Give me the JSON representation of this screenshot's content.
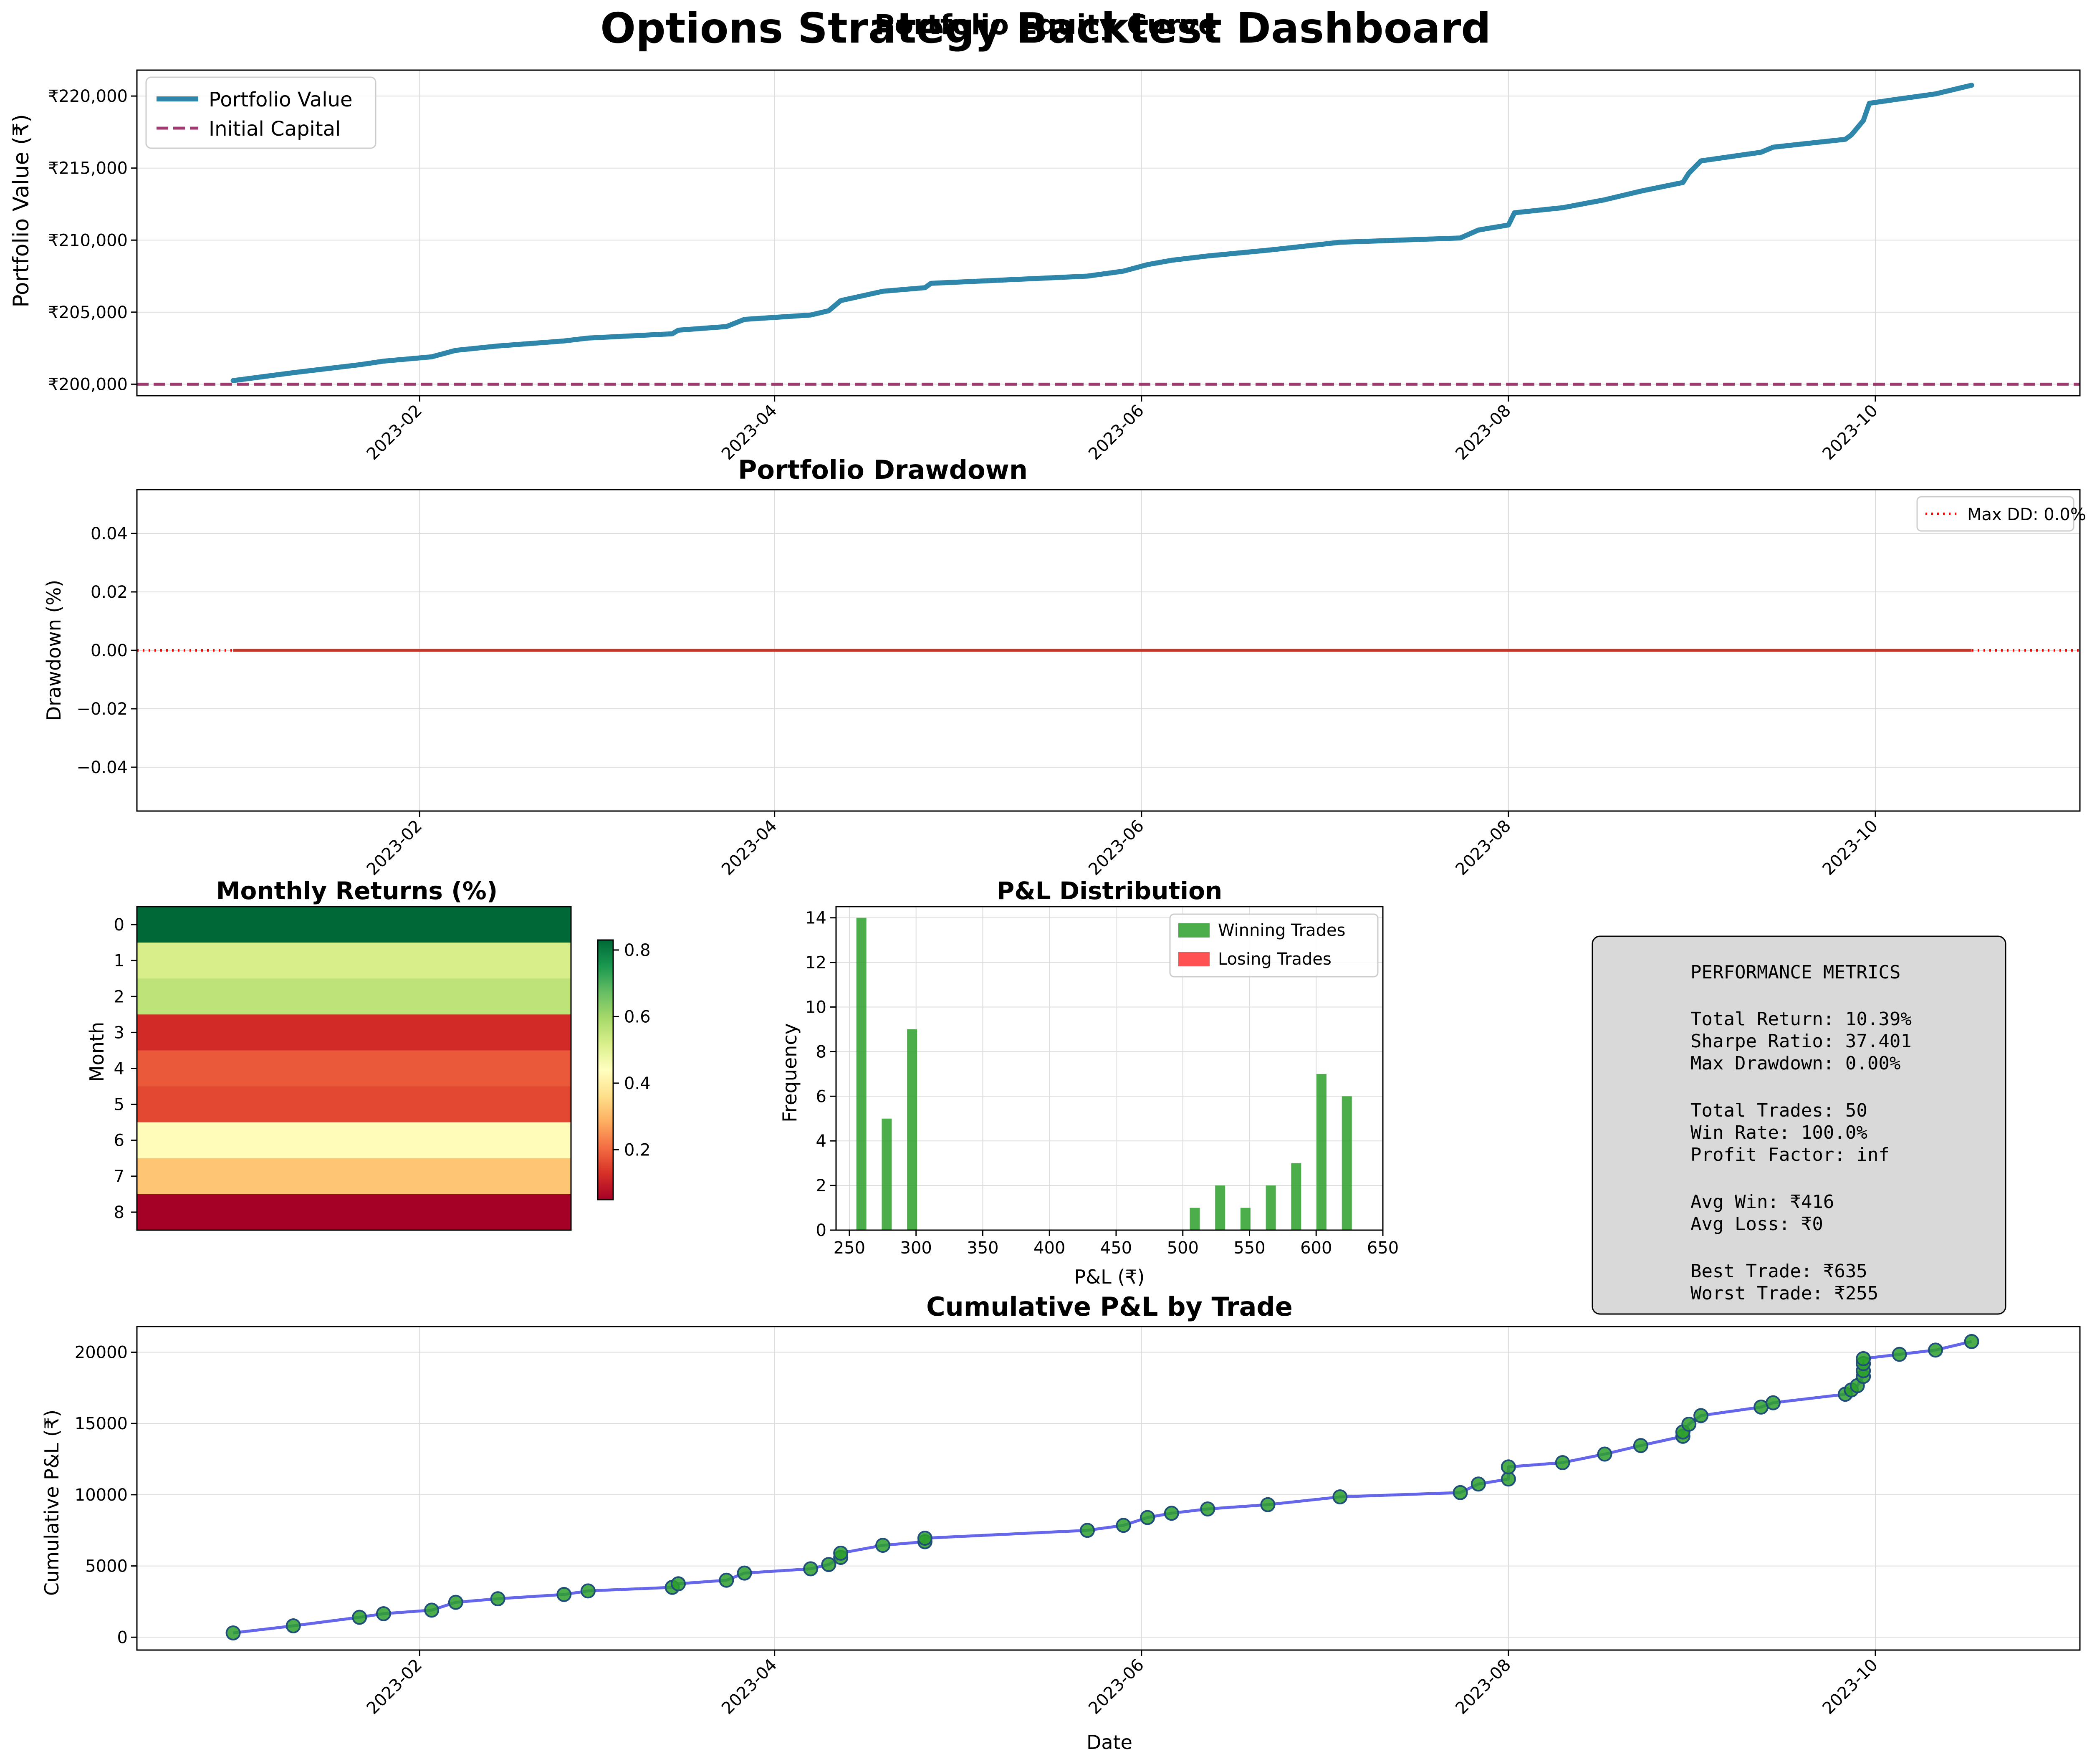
{
  "suptitle": "Options Strategy Backtest Dashboard",
  "colors": {
    "equity": "#2E86AB",
    "initial": "#A23B72",
    "drawdown_line": "#C0392B",
    "maxdd": "#FF0000",
    "win": "#2CA02C",
    "loss": "#FF3333",
    "cum_line": "#4B4BE8",
    "cum_marker": "#2CA02C",
    "metrics_bg": "#D9D9D9"
  },
  "equity": {
    "title": "Portfolio Equity Curve",
    "ylabel": "Portfolio Value (₹)",
    "xticks": [
      {
        "date": "2023-02-01",
        "label": "2023-02"
      },
      {
        "date": "2023-04-01",
        "label": "2023-04"
      },
      {
        "date": "2023-06-01",
        "label": "2023-06"
      },
      {
        "date": "2023-08-01",
        "label": "2023-08"
      },
      {
        "date": "2023-10-01",
        "label": "2023-10"
      }
    ],
    "yticks": [
      {
        "value": 200000,
        "label": "₹200,000"
      },
      {
        "value": 205000,
        "label": "₹205,000"
      },
      {
        "value": 210000,
        "label": "₹210,000"
      },
      {
        "value": 215000,
        "label": "₹215,000"
      },
      {
        "value": 220000,
        "label": "₹220,000"
      }
    ],
    "legend": [
      "Portfolio Value",
      "Initial Capital"
    ]
  },
  "drawdown": {
    "title": "Portfolio Drawdown",
    "ylabel": "Drawdown (%)",
    "yticks": [
      {
        "value": 0.04,
        "label": "0.04"
      },
      {
        "value": 0.02,
        "label": "0.02"
      },
      {
        "value": 0.0,
        "label": "0.00"
      },
      {
        "value": -0.02,
        "label": "−0.02"
      },
      {
        "value": -0.04,
        "label": "−0.04"
      }
    ],
    "legend": "Max DD: 0.0%"
  },
  "monthly": {
    "title": "Monthly Returns (%)",
    "ylabel": "Month",
    "rows": [
      "0",
      "1",
      "2",
      "3",
      "4",
      "5",
      "6",
      "7",
      "8"
    ],
    "colorbar_ticks": [
      "0.2",
      "0.4",
      "0.6",
      "0.8"
    ]
  },
  "pnl": {
    "title": "P&L Distribution",
    "xlabel": "P&L (₹)",
    "ylabel": "Frequency",
    "xticks": [
      "250",
      "300",
      "350",
      "400",
      "450",
      "500",
      "550",
      "600",
      "650"
    ],
    "yticks": [
      "0",
      "2",
      "4",
      "6",
      "8",
      "10",
      "12",
      "14"
    ],
    "legend": [
      "Winning Trades",
      "Losing Trades"
    ]
  },
  "metrics": {
    "header": "PERFORMANCE METRICS",
    "total_return": "Total Return: 10.39%",
    "sharpe": "Sharpe Ratio: 37.401",
    "max_dd": "Max Drawdown: 0.00%",
    "total_trades": "Total Trades: 50",
    "win_rate": "Win Rate: 100.0%",
    "profit_factor": "Profit Factor: inf",
    "avg_win": "Avg Win: ₹416",
    "avg_loss": "Avg Loss: ₹0",
    "best": "Best Trade: ₹635",
    "worst": "Worst Trade: ₹255"
  },
  "cumulative": {
    "title": "Cumulative P&L by Trade",
    "xlabel": "Date",
    "ylabel": "Cumulative P&L (₹)",
    "yticks": [
      "0",
      "5000",
      "10000",
      "15000",
      "20000"
    ]
  },
  "chart_data": [
    {
      "type": "line",
      "title": "Portfolio Equity Curve",
      "ylabel": "Portfolio Value (₹)",
      "xlim": [
        "2022-12-16",
        "2023-11-04"
      ],
      "ylim": [
        199200,
        221800
      ],
      "legend_position": "top-left",
      "grid": true,
      "series": [
        {
          "name": "Portfolio Value",
          "x": [
            "2023-01-01",
            "2023-01-11",
            "2023-01-22",
            "2023-01-26",
            "2023-02-03",
            "2023-02-07",
            "2023-02-14",
            "2023-02-25",
            "2023-03-01",
            "2023-03-15",
            "2023-03-16",
            "2023-03-24",
            "2023-03-27",
            "2023-04-07",
            "2023-04-10",
            "2023-04-12",
            "2023-04-19",
            "2023-04-26",
            "2023-04-27",
            "2023-05-23",
            "2023-05-29",
            "2023-06-02",
            "2023-06-06",
            "2023-06-12",
            "2023-06-22",
            "2023-07-04",
            "2023-07-24",
            "2023-07-27",
            "2023-08-01",
            "2023-08-02",
            "2023-08-10",
            "2023-08-17",
            "2023-08-23",
            "2023-08-30",
            "2023-08-31",
            "2023-09-02",
            "2023-09-12",
            "2023-09-14",
            "2023-09-26",
            "2023-09-27",
            "2023-09-28",
            "2023-09-29",
            "2023-09-30",
            "2023-10-05",
            "2023-10-11",
            "2023-10-17"
          ],
          "y": [
            200250,
            200800,
            201350,
            201600,
            201900,
            202350,
            202650,
            203000,
            203200,
            203500,
            203750,
            204000,
            204500,
            204800,
            205100,
            205800,
            206450,
            206700,
            207000,
            207500,
            207850,
            208300,
            208600,
            208900,
            209300,
            209850,
            210150,
            210700,
            211050,
            211900,
            212250,
            212800,
            213400,
            214000,
            214650,
            215500,
            216100,
            216450,
            217000,
            217300,
            217800,
            218300,
            219500,
            219800,
            220150,
            220750
          ]
        },
        {
          "name": "Initial Capital",
          "x": [
            "2022-12-16",
            "2023-11-04"
          ],
          "y": [
            200000,
            200000
          ]
        }
      ]
    },
    {
      "type": "line",
      "title": "Portfolio Drawdown",
      "ylabel": "Drawdown (%)",
      "xlim": [
        "2022-12-16",
        "2023-11-04"
      ],
      "ylim": [
        -0.055,
        0.055
      ],
      "legend_position": "top-right",
      "grid": true,
      "series": [
        {
          "name": "Drawdown",
          "x": [
            "2023-01-01",
            "2023-10-17"
          ],
          "y": [
            0,
            0
          ]
        },
        {
          "name": "Max DD: 0.0%",
          "x": [
            "2022-12-16",
            "2023-11-04"
          ],
          "y": [
            0,
            0
          ]
        }
      ]
    },
    {
      "type": "heatmap",
      "title": "Monthly Returns (%)",
      "ylabel": "Month",
      "rows": [
        "0",
        "1",
        "2",
        "3",
        "4",
        "5",
        "6",
        "7",
        "8"
      ],
      "values": [
        0.83,
        0.52,
        0.56,
        0.12,
        0.18,
        0.16,
        0.43,
        0.32,
        0.05
      ],
      "vmin": 0.05,
      "vmax": 0.83,
      "colormap": "RdYlGn"
    },
    {
      "type": "bar",
      "title": "P&L Distribution",
      "xlabel": "P&L (₹)",
      "ylabel": "Frequency",
      "xlim": [
        240,
        650
      ],
      "ylim": [
        0,
        14.5
      ],
      "legend_position": "top-right",
      "bar_width": 7.5,
      "series": [
        {
          "name": "Winning Trades",
          "x": [
            259,
            278,
            297,
            509,
            528,
            547,
            566,
            585,
            604,
            623
          ],
          "values": [
            14,
            5,
            9,
            1,
            2,
            1,
            2,
            3,
            7,
            6
          ]
        },
        {
          "name": "Losing Trades",
          "x": [],
          "values": []
        }
      ]
    },
    {
      "type": "scatter",
      "title": "Cumulative P&L by Trade",
      "xlabel": "Date",
      "ylabel": "Cumulative P&L (₹)",
      "xlim": [
        "2022-12-16",
        "2023-11-04"
      ],
      "ylim": [
        -900,
        21800
      ],
      "grid": true,
      "x": [
        "2023-01-01",
        "2023-01-11",
        "2023-01-22",
        "2023-01-26",
        "2023-02-03",
        "2023-02-07",
        "2023-02-14",
        "2023-02-25",
        "2023-03-01",
        "2023-03-15",
        "2023-03-16",
        "2023-03-24",
        "2023-03-27",
        "2023-04-07",
        "2023-04-10",
        "2023-04-12",
        "2023-04-12",
        "2023-04-19",
        "2023-04-26",
        "2023-04-26",
        "2023-05-23",
        "2023-05-29",
        "2023-06-02",
        "2023-06-06",
        "2023-06-12",
        "2023-06-22",
        "2023-07-04",
        "2023-07-24",
        "2023-07-27",
        "2023-08-01",
        "2023-08-01",
        "2023-08-10",
        "2023-08-17",
        "2023-08-23",
        "2023-08-30",
        "2023-08-30",
        "2023-08-31",
        "2023-09-02",
        "2023-09-12",
        "2023-09-14",
        "2023-09-26",
        "2023-09-27",
        "2023-09-28",
        "2023-09-29",
        "2023-09-29",
        "2023-09-29",
        "2023-09-29",
        "2023-10-05",
        "2023-10-11",
        "2023-10-17"
      ],
      "y": [
        300,
        800,
        1400,
        1650,
        1900,
        2450,
        2700,
        3000,
        3250,
        3500,
        3750,
        4000,
        4500,
        4800,
        5100,
        5600,
        5900,
        6450,
        6700,
        6950,
        7500,
        7850,
        8400,
        8700,
        9000,
        9300,
        9850,
        10150,
        10750,
        11100,
        11950,
        12250,
        12850,
        13450,
        14100,
        14400,
        14950,
        15550,
        16150,
        16450,
        17050,
        17350,
        17650,
        18300,
        18700,
        19200,
        19550,
        19850,
        20150,
        20750
      ]
    }
  ]
}
